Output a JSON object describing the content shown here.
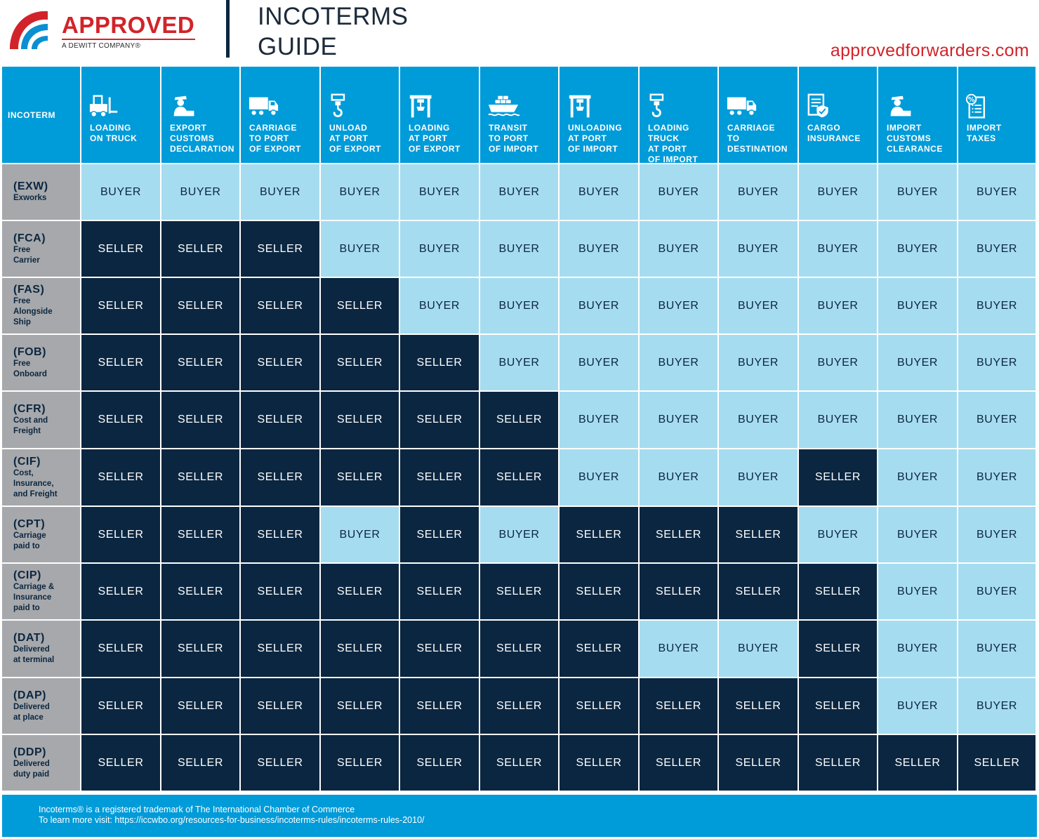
{
  "brand": {
    "name": "APPROVED",
    "tagline": "A DEWITT COMPANY®",
    "colors": {
      "red": "#d2232a",
      "navy": "#0b2640",
      "blue": "#009bd9",
      "light_blue": "#a6dcef",
      "gray": "#a6a8ab"
    }
  },
  "title": {
    "line1": "INCOTERMS",
    "line2": "GUIDE"
  },
  "website": "approvedforwarders.com",
  "table": {
    "first_header": "INCOTERM",
    "columns": [
      {
        "icon": "forklift-icon",
        "lines": [
          "LOADING",
          "ON TRUCK"
        ]
      },
      {
        "icon": "customs-officer-icon",
        "lines": [
          "EXPORT",
          "CUSTOMS",
          "DECLARATION"
        ]
      },
      {
        "icon": "truck-icon",
        "lines": [
          "CARRIAGE",
          "TO PORT",
          "OF EXPORT"
        ]
      },
      {
        "icon": "crane-hook-icon",
        "lines": [
          "UNLOAD",
          "AT PORT",
          "OF EXPORT"
        ]
      },
      {
        "icon": "gantry-crane-icon",
        "lines": [
          "LOADING",
          "AT PORT",
          "OF EXPORT"
        ]
      },
      {
        "icon": "cargo-ship-icon",
        "lines": [
          "TRANSIT",
          "TO PORT",
          "OF IMPORT"
        ]
      },
      {
        "icon": "gantry-crane-icon",
        "lines": [
          "UNLOADING",
          "AT PORT",
          "OF IMPORT"
        ]
      },
      {
        "icon": "crane-hook-icon",
        "lines": [
          "LOADING TRUCK",
          "AT PORT",
          "OF IMPORT"
        ]
      },
      {
        "icon": "truck-icon",
        "lines": [
          "CARRIAGE",
          "TO",
          "DESTINATION"
        ]
      },
      {
        "icon": "insurance-document-icon",
        "lines": [
          "CARGO",
          "INSURANCE"
        ]
      },
      {
        "icon": "customs-officer-icon",
        "lines": [
          "IMPORT",
          "CUSTOMS",
          "CLEARANCE"
        ]
      },
      {
        "icon": "tax-document-icon",
        "lines": [
          "IMPORT",
          "TAXES"
        ]
      }
    ],
    "rows": [
      {
        "code": "(EXW)",
        "name": [
          "Exworks"
        ],
        "cells": [
          "BUYER",
          "BUYER",
          "BUYER",
          "BUYER",
          "BUYER",
          "BUYER",
          "BUYER",
          "BUYER",
          "BUYER",
          "BUYER",
          "BUYER",
          "BUYER"
        ]
      },
      {
        "code": "(FCA)",
        "name": [
          "Free",
          "Carrier"
        ],
        "cells": [
          "SELLER",
          "SELLER",
          "SELLER",
          "BUYER",
          "BUYER",
          "BUYER",
          "BUYER",
          "BUYER",
          "BUYER",
          "BUYER",
          "BUYER",
          "BUYER"
        ]
      },
      {
        "code": "(FAS)",
        "name": [
          "Free",
          "Alongside",
          "Ship"
        ],
        "cells": [
          "SELLER",
          "SELLER",
          "SELLER",
          "SELLER",
          "BUYER",
          "BUYER",
          "BUYER",
          "BUYER",
          "BUYER",
          "BUYER",
          "BUYER",
          "BUYER"
        ]
      },
      {
        "code": "(FOB)",
        "name": [
          "Free",
          "Onboard"
        ],
        "cells": [
          "SELLER",
          "SELLER",
          "SELLER",
          "SELLER",
          "SELLER",
          "BUYER",
          "BUYER",
          "BUYER",
          "BUYER",
          "BUYER",
          "BUYER",
          "BUYER"
        ]
      },
      {
        "code": "(CFR)",
        "name": [
          "Cost and",
          "Freight"
        ],
        "cells": [
          "SELLER",
          "SELLER",
          "SELLER",
          "SELLER",
          "SELLER",
          "SELLER",
          "BUYER",
          "BUYER",
          "BUYER",
          "BUYER",
          "BUYER",
          "BUYER"
        ]
      },
      {
        "code": "(CIF)",
        "name": [
          "Cost,",
          "Insurance,",
          "and Freight"
        ],
        "cells": [
          "SELLER",
          "SELLER",
          "SELLER",
          "SELLER",
          "SELLER",
          "SELLER",
          "BUYER",
          "BUYER",
          "BUYER",
          "SELLER",
          "BUYER",
          "BUYER"
        ]
      },
      {
        "code": "(CPT)",
        "name": [
          "Carriage",
          "paid to"
        ],
        "cells": [
          "SELLER",
          "SELLER",
          "SELLER",
          "BUYER",
          "SELLER",
          "BUYER",
          "SELLER",
          "SELLER",
          "SELLER",
          "BUYER",
          "BUYER",
          "BUYER"
        ]
      },
      {
        "code": "(CIP)",
        "name": [
          "Carriage &",
          "Insurance",
          "paid to"
        ],
        "cells": [
          "SELLER",
          "SELLER",
          "SELLER",
          "SELLER",
          "SELLER",
          "SELLER",
          "SELLER",
          "SELLER",
          "SELLER",
          "SELLER",
          "BUYER",
          "BUYER"
        ]
      },
      {
        "code": "(DAT)",
        "name": [
          "Delivered",
          "at terminal"
        ],
        "cells": [
          "SELLER",
          "SELLER",
          "SELLER",
          "SELLER",
          "SELLER",
          "SELLER",
          "SELLER",
          "BUYER",
          "BUYER",
          "SELLER",
          "BUYER",
          "BUYER"
        ]
      },
      {
        "code": "(DAP)",
        "name": [
          "Delivered",
          "at place"
        ],
        "cells": [
          "SELLER",
          "SELLER",
          "SELLER",
          "SELLER",
          "SELLER",
          "SELLER",
          "SELLER",
          "SELLER",
          "SELLER",
          "SELLER",
          "BUYER",
          "BUYER"
        ]
      },
      {
        "code": "(DDP)",
        "name": [
          "Delivered",
          "duty paid"
        ],
        "cells": [
          "SELLER",
          "SELLER",
          "SELLER",
          "SELLER",
          "SELLER",
          "SELLER",
          "SELLER",
          "SELLER",
          "SELLER",
          "SELLER",
          "SELLER",
          "SELLER"
        ]
      }
    ]
  },
  "footer": {
    "trademark": "Incoterms® is a registered trademark of The International Chamber of Commerce",
    "learn_more": "To learn more visit: https://iccwbo.org/resources-for-business/incoterms-rules/incoterms-rules-2010/"
  }
}
